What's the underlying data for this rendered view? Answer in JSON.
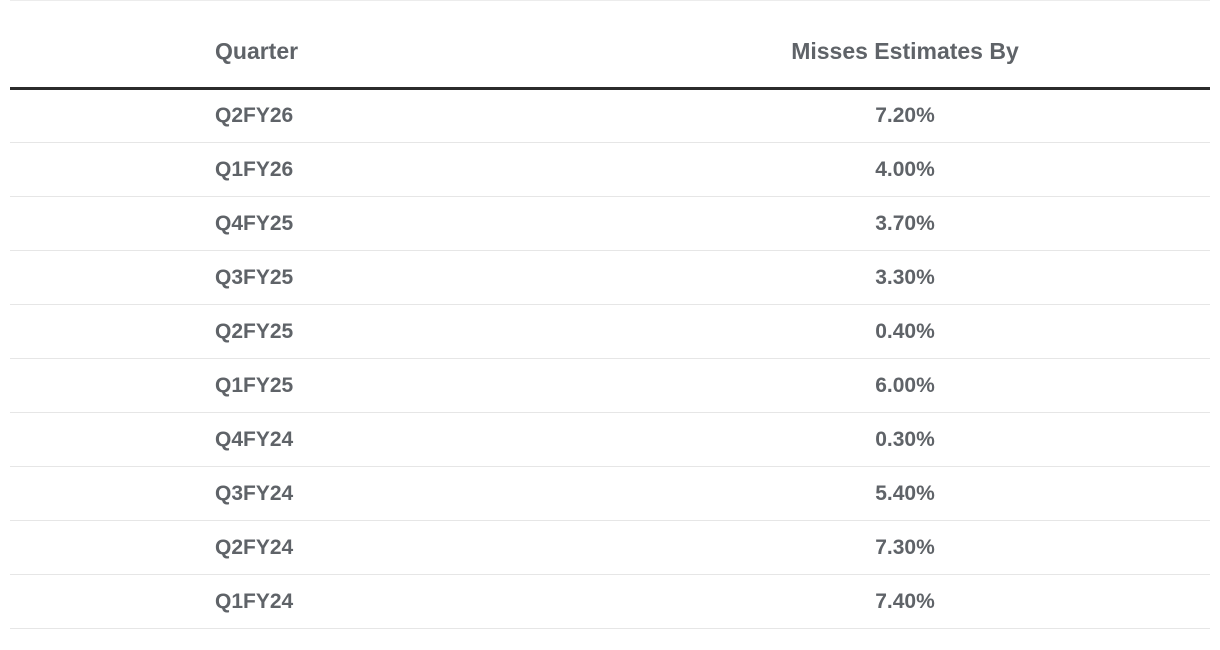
{
  "colors": {
    "text": "#5f6368",
    "header_rule": "#2b2b2b",
    "row_divider": "#e6e6e6",
    "background": "#ffffff"
  },
  "chart_data": {
    "type": "table",
    "title": "",
    "columns": [
      "Quarter",
      "Misses Estimates By"
    ],
    "rows": [
      [
        "Q2FY26",
        "7.20%"
      ],
      [
        "Q1FY26",
        "4.00%"
      ],
      [
        "Q4FY25",
        "3.70%"
      ],
      [
        "Q3FY25",
        "3.30%"
      ],
      [
        "Q2FY25",
        "0.40%"
      ],
      [
        "Q1FY25",
        "6.00%"
      ],
      [
        "Q4FY24",
        "0.30%"
      ],
      [
        "Q3FY24",
        "5.40%"
      ],
      [
        "Q2FY24",
        "7.30%"
      ],
      [
        "Q1FY24",
        "7.40%"
      ]
    ]
  }
}
